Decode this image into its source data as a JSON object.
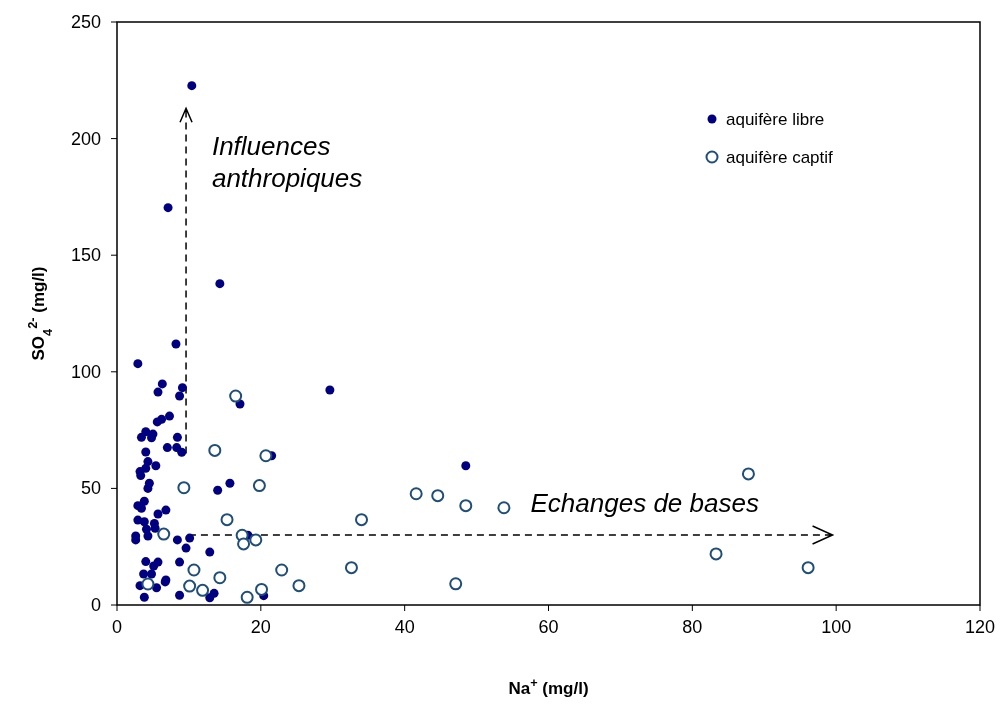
{
  "chart_data": {
    "type": "scatter",
    "xlabel": "Na$^{+}$ (mg/l)",
    "ylabel": "SO$_{4}$$^{2-}$ (mg/l)",
    "xlim": [
      0,
      120
    ],
    "ylim": [
      0,
      250
    ],
    "xticks": [
      0,
      20,
      40,
      60,
      80,
      100,
      120
    ],
    "yticks": [
      0,
      50,
      100,
      150,
      200,
      250
    ],
    "grid": false,
    "legend": "top right",
    "marker": "circle",
    "annotations": [
      "Influences anthropiques",
      "Echanges de bases"
    ],
    "series": [
      {
        "name": "aquifère libre",
        "color": "#000080",
        "x": [
          10.4,
          7.1,
          14.3,
          8.2,
          2.9,
          6.3,
          5.7,
          9.1,
          8.7,
          17.1,
          7.3,
          5.6,
          6.2,
          4.0,
          3.4,
          5.0,
          4.8,
          8.4,
          7.0,
          8.3,
          9.0,
          4.0,
          21.5,
          4.3,
          5.4,
          4.0,
          3.2,
          3.3,
          4.5,
          4.3,
          15.7,
          14.0,
          3.8,
          2.9,
          3.4,
          6.8,
          5.7,
          2.9,
          3.8,
          5.2,
          5.3,
          4.1,
          2.6,
          2.6,
          4.3,
          8.4,
          10.1,
          9.6,
          18.2,
          12.9,
          4.0,
          5.7,
          5.1,
          8.7,
          3.7,
          4.8,
          6.8,
          6.7,
          3.2,
          5.5,
          3.8,
          8.7,
          12.9,
          13.5,
          20.4,
          29.6,
          48.5
        ],
        "values": [
          222.7,
          170.4,
          137.8,
          111.9,
          103.5,
          94.8,
          91.3,
          93.2,
          89.6,
          86.2,
          81,
          78.5,
          79.6,
          74.3,
          71.9,
          73.3,
          71.7,
          71.9,
          67.5,
          67.5,
          65.5,
          65.6,
          64.0,
          61.5,
          59.7,
          58.6,
          57.2,
          55.5,
          52.2,
          50.0,
          52.2,
          49.2,
          44.5,
          42.6,
          41.5,
          40.7,
          39.0,
          36.4,
          35.7,
          35.0,
          32.9,
          32.5,
          29.6,
          27.9,
          29.6,
          27.9,
          28.7,
          24.4,
          29.9,
          22.7,
          18.6,
          18.4,
          16.7,
          18.4,
          13.3,
          13.3,
          10.7,
          9.9,
          8.3,
          7.4,
          3.3,
          4.2,
          3.1,
          5.0,
          4.0,
          92.2,
          59.7
        ]
      },
      {
        "name": "aquifère captif",
        "color": "#1f4e79",
        "x": [
          16.5,
          13.6,
          20.7,
          9.3,
          19.8,
          15.3,
          6.5,
          17.4,
          19.3,
          17.6,
          10.7,
          14.3,
          4.3,
          10.1,
          11.9,
          18.1,
          20.1,
          22.9,
          25.3,
          34.0,
          41.6,
          44.6,
          48.5,
          53.8,
          32.6,
          47.1,
          87.8,
          83.3,
          96.1
        ],
        "values": [
          89.6,
          66.3,
          64.0,
          50.3,
          51.2,
          36.6,
          30.4,
          29.9,
          27.9,
          26.2,
          15.0,
          11.7,
          9.0,
          8.1,
          6.3,
          3.3,
          6.7,
          15.0,
          8.3,
          36.6,
          47.7,
          46.9,
          42.6,
          41.7,
          16.0,
          9.1,
          56.2,
          21.9,
          16.0
        ]
      }
    ]
  }
}
